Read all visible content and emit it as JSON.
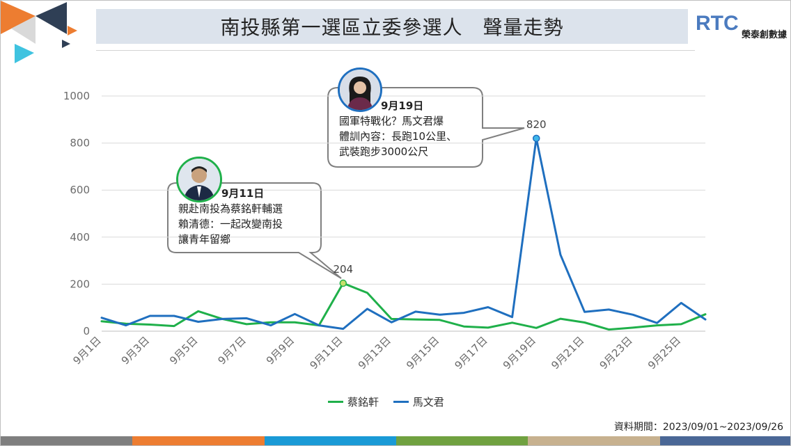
{
  "header": {
    "title": "南投縣第一選區立委參選人　聲量走勢",
    "logo_mark": "RTC",
    "logo_name": "榮泰創數據"
  },
  "colors": {
    "series_green": "#1fb04a",
    "series_blue": "#1f6fbf",
    "footer": [
      "#7f7f7f",
      "#ed7d31",
      "#1a9ad6",
      "#70a140",
      "#c7b18f",
      "#4a6796"
    ]
  },
  "callouts": [
    {
      "date": "9月11日",
      "lines": [
        "親赴南投為蔡銘軒輔選",
        "賴清德：一起改變南投",
        "讓青年留鄉"
      ]
    },
    {
      "date": "9月19日",
      "lines": [
        "國軍特戰化？馬文君爆",
        "體訓內容：長跑10公里、",
        "武裝跑步3000公尺"
      ]
    }
  ],
  "legend": [
    "蔡銘軒",
    "馬文君"
  ],
  "footer": {
    "period": "資料期間：2023/09/01~2023/09/26"
  },
  "chart_data": {
    "type": "line",
    "title": "南投縣第一選區立委參選人　聲量走勢",
    "x": [
      "9月1日",
      "9月2日",
      "9月3日",
      "9月4日",
      "9月5日",
      "9月6日",
      "9月7日",
      "9月8日",
      "9月9日",
      "9月10日",
      "9月11日",
      "9月12日",
      "9月13日",
      "9月14日",
      "9月15日",
      "9月16日",
      "9月17日",
      "9月18日",
      "9月19日",
      "9月20日",
      "9月21日",
      "9月22日",
      "9月23日",
      "9月24日",
      "9月25日",
      "9月26日"
    ],
    "x_tick_labels": [
      "9月1日",
      "9月3日",
      "9月5日",
      "9月7日",
      "9月9日",
      "9月11日",
      "9月13日",
      "9月15日",
      "9月17日",
      "9月19日",
      "9月21日",
      "9月23日",
      "9月25日"
    ],
    "ylim": [
      0,
      1000
    ],
    "yticks": [
      0,
      200,
      400,
      600,
      800,
      1000
    ],
    "grid": true,
    "legend_position": "bottom",
    "series": [
      {
        "name": "蔡銘軒",
        "values": [
          42,
          32,
          28,
          22,
          85,
          52,
          30,
          38,
          38,
          25,
          204,
          163,
          52,
          50,
          48,
          20,
          15,
          36,
          14,
          53,
          37,
          7,
          15,
          25,
          30,
          72
        ]
      },
      {
        "name": "馬文君",
        "values": [
          57,
          25,
          65,
          65,
          40,
          52,
          55,
          25,
          73,
          25,
          10,
          95,
          38,
          83,
          70,
          78,
          102,
          60,
          820,
          325,
          82,
          92,
          70,
          35,
          120,
          50
        ]
      }
    ],
    "data_labels": [
      {
        "series": "蔡銘軒",
        "x": "9月11日",
        "value": 204,
        "text": "204"
      },
      {
        "series": "馬文君",
        "x": "9月19日",
        "value": 820,
        "text": "820"
      }
    ]
  }
}
